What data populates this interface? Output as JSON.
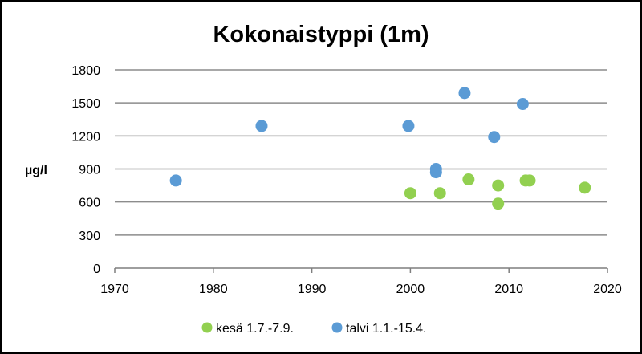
{
  "chart_data": {
    "type": "scatter",
    "title": "Kokonaistyppi (1m)",
    "xlabel": "",
    "ylabel": "µg/l",
    "xlim": [
      1970,
      2020
    ],
    "ylim": [
      0,
      1800
    ],
    "xticks": [
      1970,
      1980,
      1990,
      2000,
      2010,
      2020
    ],
    "yticks": [
      0,
      300,
      600,
      900,
      1200,
      1500,
      1800
    ],
    "grid": "horizontal",
    "legend_position": "bottom",
    "series": [
      {
        "name": "kesä 1.7.-7.9.",
        "color": "#92d050",
        "points": [
          {
            "x": 2000.0,
            "y": 680
          },
          {
            "x": 2003.0,
            "y": 680
          },
          {
            "x": 2005.9,
            "y": 805
          },
          {
            "x": 2008.9,
            "y": 750
          },
          {
            "x": 2008.9,
            "y": 585
          },
          {
            "x": 2011.7,
            "y": 795
          },
          {
            "x": 2012.1,
            "y": 795
          },
          {
            "x": 2017.7,
            "y": 730
          }
        ]
      },
      {
        "name": "talvi 1.1.-15.4.",
        "color": "#5b9bd5",
        "points": [
          {
            "x": 1976.2,
            "y": 795
          },
          {
            "x": 1984.9,
            "y": 1290
          },
          {
            "x": 1999.8,
            "y": 1290
          },
          {
            "x": 2002.6,
            "y": 900
          },
          {
            "x": 2002.6,
            "y": 870
          },
          {
            "x": 2005.5,
            "y": 1590
          },
          {
            "x": 2008.5,
            "y": 1190
          },
          {
            "x": 2011.4,
            "y": 1490
          }
        ]
      }
    ]
  }
}
